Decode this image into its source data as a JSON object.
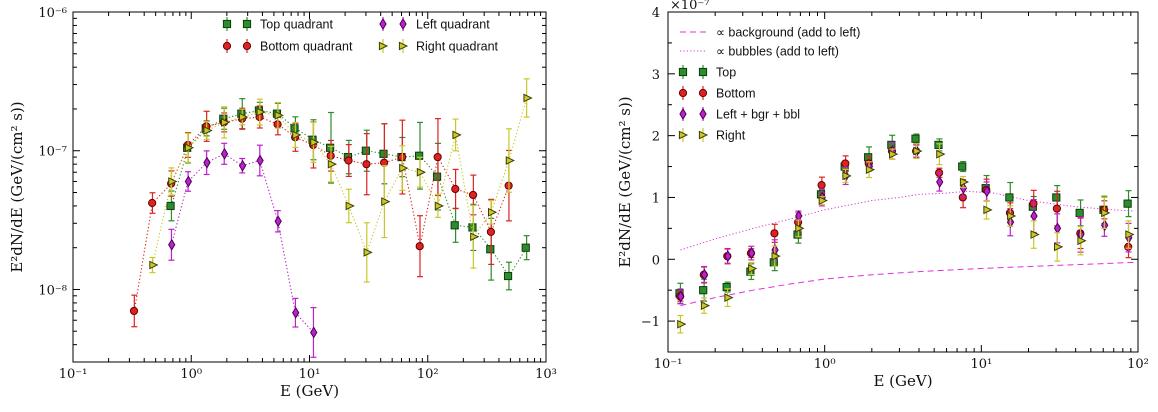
{
  "chart_data": [
    {
      "type": "scatter",
      "xscale": "log",
      "yscale": "log",
      "xlim": [
        0.1,
        1000
      ],
      "ylim": [
        3e-09,
        1e-06
      ],
      "xlabel": "E (GeV)",
      "ylabel": "E²dN/dE  (GeV/(cm² s))",
      "x_tick_labels": [
        "10⁻¹",
        "10⁰",
        "10¹",
        "10²",
        "10³"
      ],
      "y_tick_labels": [
        "10⁻⁸",
        "10⁻⁷",
        "10⁻⁶"
      ],
      "legend_placement": "top",
      "series": [
        {
          "name": "Top quadrant",
          "color": "#2e8b2e",
          "edge": "#0b3d0b",
          "marker": "square",
          "x": [
            0.68,
            0.94,
            1.35,
            1.9,
            2.7,
            3.8,
            5.4,
            7.6,
            10.8,
            15.2,
            21.5,
            30.5,
            43,
            61,
            86,
            122,
            172,
            243,
            344,
            486,
            686
          ],
          "y": [
            4e-08,
            1.05e-07,
            1.45e-07,
            1.7e-07,
            1.85e-07,
            1.95e-07,
            1.85e-07,
            1.45e-07,
            1.2e-07,
            1.05e-07,
            9e-08,
            1e-07,
            9.5e-08,
            9e-08,
            9.2e-08,
            6.5e-08,
            2.9e-08,
            2.8e-08,
            1.95e-08,
            1.25e-08,
            2e-08
          ]
        },
        {
          "name": "Bottom quadrant",
          "color": "#dd2222",
          "edge": "#660000",
          "marker": "circle",
          "x": [
            0.33,
            0.47,
            0.68,
            0.94,
            1.35,
            1.9,
            2.7,
            3.8,
            5.4,
            7.6,
            10.8,
            15.2,
            21.5,
            30.5,
            43,
            61,
            86,
            122,
            172,
            243,
            344,
            486
          ],
          "y": [
            7e-09,
            4.2e-08,
            5.8e-08,
            1.1e-07,
            1.5e-07,
            1.6e-07,
            1.7e-07,
            1.75e-07,
            1.55e-07,
            1.25e-07,
            1.1e-07,
            9.2e-08,
            8.5e-08,
            8e-08,
            8.2e-08,
            9e-08,
            2.05e-08,
            9e-08,
            5.3e-08,
            4.8e-08,
            2.6e-08,
            5.6e-08
          ]
        },
        {
          "name": "Left quadrant",
          "color": "#bb22cc",
          "edge": "#4a0055",
          "marker": "diamond",
          "x": [
            0.68,
            0.94,
            1.35,
            1.9,
            2.7,
            3.8,
            5.4,
            7.6,
            10.8
          ],
          "y": [
            2.1e-08,
            6e-08,
            8.2e-08,
            9.5e-08,
            7.8e-08,
            8.5e-08,
            3.1e-08,
            6.8e-09,
            4.9e-09
          ]
        },
        {
          "name": "Right quadrant",
          "color": "#c8c82a",
          "edge": "#3d3d00",
          "marker": "triangle-right",
          "x": [
            0.47,
            0.68,
            0.94,
            1.35,
            1.9,
            2.7,
            3.8,
            5.4,
            7.6,
            10.8,
            15.2,
            21.5,
            30.5,
            43,
            61,
            86,
            122,
            172,
            243,
            344,
            486,
            686
          ],
          "y": [
            1.5e-08,
            6e-08,
            1.05e-07,
            1.4e-07,
            1.6e-07,
            1.75e-07,
            1.9e-07,
            1.8e-07,
            1.3e-07,
            1.15e-07,
            8e-08,
            4e-08,
            1.85e-08,
            4.3e-08,
            7.5e-08,
            7e-08,
            4e-08,
            1.3e-07,
            2.4e-08,
            3.6e-08,
            8.5e-08,
            2.4e-07
          ]
        }
      ]
    },
    {
      "type": "scatter",
      "xscale": "log",
      "yscale": "linear",
      "xlim": [
        0.1,
        100
      ],
      "ylim": [
        -1.5,
        4
      ],
      "xlabel": "E (GeV)",
      "ylabel": "E²dN/dE  (GeV/(cm² s))",
      "y_multiplier": "×10⁻⁷",
      "x_tick_labels": [
        "10⁻¹",
        "10⁰",
        "10¹",
        "10²"
      ],
      "y_tick_labels": [
        "−1",
        "0",
        "1",
        "2",
        "3",
        "4"
      ],
      "legend_placement": "top-left",
      "lines": [
        {
          "name": "∝ background (add to left)",
          "color": "#dd33dd",
          "style": "dashed",
          "x": [
            0.12,
            0.2,
            0.35,
            0.6,
            1,
            2,
            4,
            8,
            15,
            30,
            60,
            95
          ],
          "y": [
            -0.75,
            -0.62,
            -0.5,
            -0.4,
            -0.32,
            -0.25,
            -0.2,
            -0.16,
            -0.13,
            -0.1,
            -0.07,
            -0.05
          ]
        },
        {
          "name": "∝ bubbles (add to left)",
          "color": "#dd33dd",
          "style": "dotted",
          "x": [
            0.12,
            0.2,
            0.35,
            0.6,
            1,
            2,
            3,
            4,
            6,
            8,
            12,
            20,
            40,
            70,
            95
          ],
          "y": [
            0.15,
            0.33,
            0.5,
            0.65,
            0.8,
            0.95,
            1.0,
            1.05,
            1.07,
            1.1,
            1.07,
            0.95,
            0.85,
            0.8,
            0.78
          ]
        }
      ],
      "series": [
        {
          "name": "Top",
          "color": "#2e8b2e",
          "edge": "#0b3d0b",
          "marker": "square",
          "x": [
            0.12,
            0.17,
            0.24,
            0.34,
            0.48,
            0.68,
            0.96,
            1.36,
            1.92,
            2.7,
            3.85,
            5.4,
            7.65,
            10.8,
            15.3,
            21.6,
            30.5,
            43,
            61,
            87
          ],
          "y": [
            -0.55,
            -0.5,
            -0.45,
            -0.2,
            -0.05,
            0.4,
            1.05,
            1.5,
            1.65,
            1.85,
            1.95,
            1.85,
            1.5,
            1.15,
            1.0,
            0.85,
            1.0,
            0.75,
            0.8,
            0.9
          ]
        },
        {
          "name": "Bottom",
          "color": "#dd2222",
          "edge": "#660000",
          "marker": "circle",
          "x": [
            0.12,
            0.17,
            0.24,
            0.34,
            0.48,
            0.68,
            0.96,
            1.36,
            1.92,
            2.7,
            3.85,
            5.4,
            7.65,
            10.8,
            15.3,
            21.6,
            30.5,
            43,
            61,
            87
          ],
          "y": [
            -0.6,
            -0.25,
            0.05,
            0.1,
            0.42,
            0.6,
            1.2,
            1.55,
            1.55,
            1.75,
            1.75,
            1.4,
            1.0,
            1.12,
            0.75,
            0.9,
            0.82,
            0.42,
            0.8,
            0.2
          ]
        },
        {
          "name": "Left + bgr + bbl",
          "color": "#bb22cc",
          "edge": "#4a0055",
          "marker": "diamond",
          "x": [
            0.12,
            0.17,
            0.24,
            0.34,
            0.48,
            0.68,
            0.96,
            1.36,
            1.92,
            2.7,
            3.85,
            5.4,
            7.65,
            10.8,
            15.3,
            21.6,
            30.5,
            43,
            61,
            87
          ],
          "y": [
            -0.6,
            -0.25,
            0.05,
            0.1,
            0.15,
            0.7,
            1.0,
            1.35,
            1.5,
            1.75,
            1.75,
            1.25,
            1.15,
            1.1,
            0.6,
            0.7,
            0.5,
            0.4,
            0.55,
            0.35
          ]
        },
        {
          "name": "Right",
          "color": "#c8c82a",
          "edge": "#3d3d00",
          "marker": "triangle-right",
          "x": [
            0.12,
            0.17,
            0.24,
            0.34,
            0.48,
            0.68,
            0.96,
            1.36,
            1.92,
            2.7,
            3.85,
            5.4,
            7.65,
            10.8,
            15.3,
            21.6,
            30.5,
            43,
            61,
            87
          ],
          "y": [
            -1.05,
            -0.75,
            -0.62,
            -0.15,
            0.05,
            0.5,
            0.95,
            1.35,
            1.45,
            1.7,
            1.75,
            1.7,
            1.25,
            0.8,
            0.7,
            0.4,
            0.2,
            0.3,
            0.75,
            0.4
          ]
        }
      ]
    }
  ]
}
